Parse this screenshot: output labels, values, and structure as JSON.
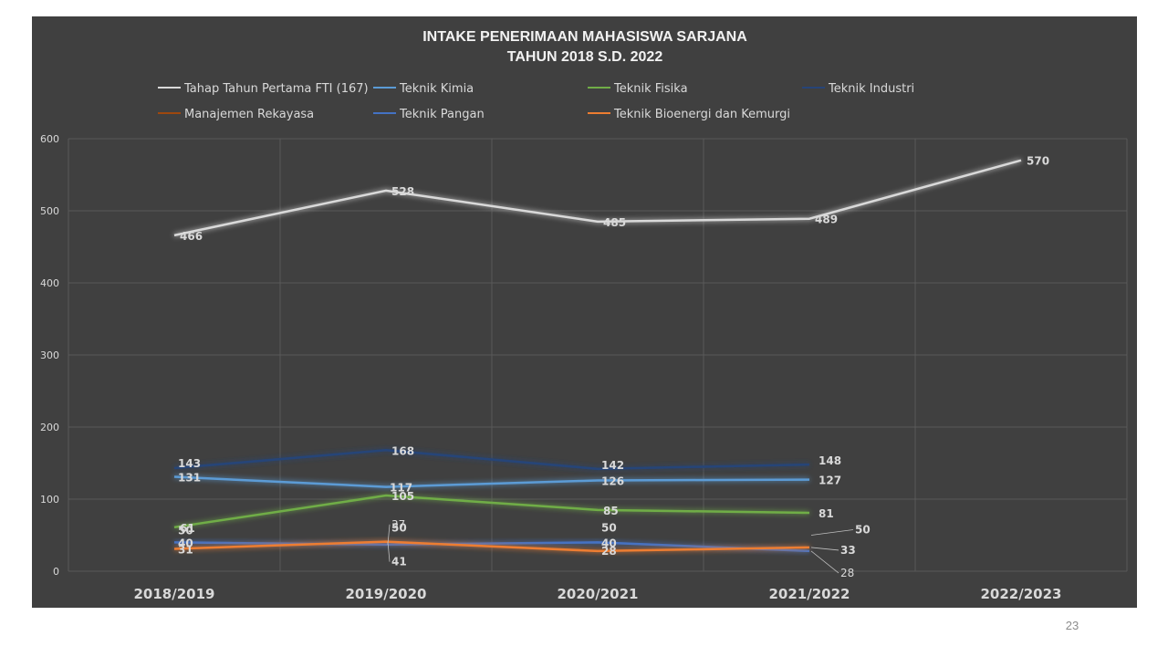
{
  "page": {
    "number": "23"
  },
  "chart_data": {
    "type": "line",
    "title": "INTAKE  PENERIMAAN MAHASISWA SARJANA",
    "subtitle": "TAHUN 2018 S.D. 2022",
    "categories": [
      "2018/2019",
      "2019/2020",
      "2020/2021",
      "2021/2022",
      "2022/2023"
    ],
    "ylim": [
      0,
      600
    ],
    "yticks": [
      0,
      100,
      200,
      300,
      400,
      500,
      600
    ],
    "grid": true,
    "legend": "top",
    "series": [
      {
        "name": "Tahap Tahun Pertama FTI (167)",
        "color": "#d9d9d9",
        "values": [
          466,
          528,
          485,
          489,
          570
        ]
      },
      {
        "name": "Teknik Kimia",
        "color": "#5b9bd5",
        "values": [
          131,
          117,
          126,
          127,
          null
        ]
      },
      {
        "name": "Teknik Fisika",
        "color": "#70ad47",
        "values": [
          61,
          105,
          85,
          81,
          null
        ]
      },
      {
        "name": "Teknik Industri",
        "color": "#264478",
        "values": [
          143,
          168,
          142,
          148,
          null
        ]
      },
      {
        "name": "Manajemen Rekayasa",
        "color": "#9e480e",
        "values": [
          50,
          50,
          50,
          50,
          null
        ]
      },
      {
        "name": "Teknik Pangan",
        "color": "#4472c4",
        "values": [
          40,
          37,
          40,
          28,
          null
        ]
      },
      {
        "name": "Teknik Bioenergi dan Kemurgi",
        "color": "#ed7d31",
        "values": [
          31,
          41,
          28,
          33,
          null
        ]
      }
    ]
  }
}
